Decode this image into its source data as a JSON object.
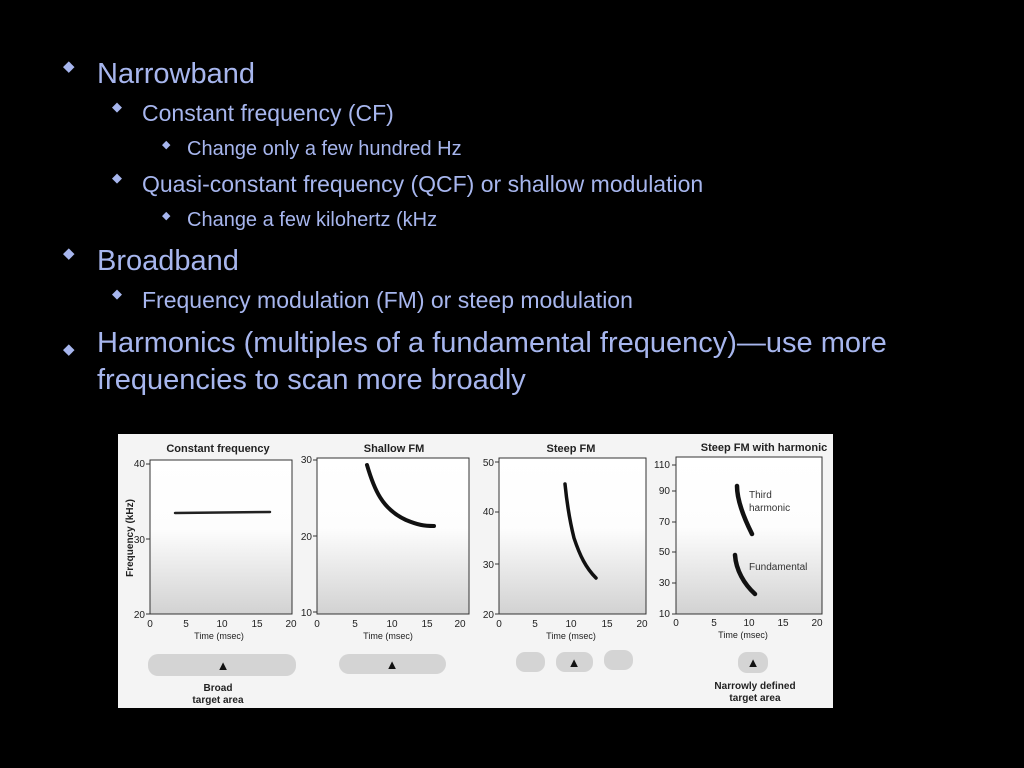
{
  "bullet_glyph": "◆",
  "text_color": "#a7b6ee",
  "bullets": {
    "narrowband": "Narrowband",
    "cf": "Constant frequency (CF)",
    "cf_sub": "Change only a few hundred Hz",
    "qcf": "Quasi-constant frequency (QCF) or shallow modulation",
    "qcf_sub": "Change a few kilohertz (kHz",
    "broadband": "Broadband",
    "fm": "Frequency modulation (FM) or steep modulation",
    "harmonics": "Harmonics (multiples of a fundamental frequency)—use more frequencies to scan more broadly"
  },
  "figure": {
    "y_axis_label": "Frequency (kHz)",
    "x_axis_label": "Time (msec)",
    "target_glyph": "▲",
    "panels": [
      {
        "title": "Constant frequency",
        "x_ticks": [
          "0",
          "5",
          "10",
          "15",
          "20"
        ],
        "y_ticks": [
          "40",
          "30",
          "20"
        ]
      },
      {
        "title": "Shallow FM",
        "x_ticks": [
          "0",
          "5",
          "10",
          "15",
          "20"
        ],
        "y_ticks": [
          "30",
          "20",
          "10"
        ]
      },
      {
        "title": "Steep FM",
        "x_ticks": [
          "0",
          "5",
          "10",
          "15",
          "20"
        ],
        "y_ticks": [
          "50",
          "40",
          "30",
          "20"
        ]
      },
      {
        "title": "Steep FM with harmonic",
        "x_ticks": [
          "0",
          "5",
          "10",
          "15",
          "20"
        ],
        "y_ticks": [
          "110",
          "90",
          "70",
          "50",
          "30",
          "10"
        ],
        "annotations": {
          "third_line1": "Third",
          "third_line2": "harmonic",
          "fundamental": "Fundamental"
        }
      }
    ],
    "captions": {
      "broad_line1": "Broad",
      "broad_line2": "target area",
      "narrow_line1": "Narrowly defined",
      "narrow_line2": "target area"
    }
  }
}
